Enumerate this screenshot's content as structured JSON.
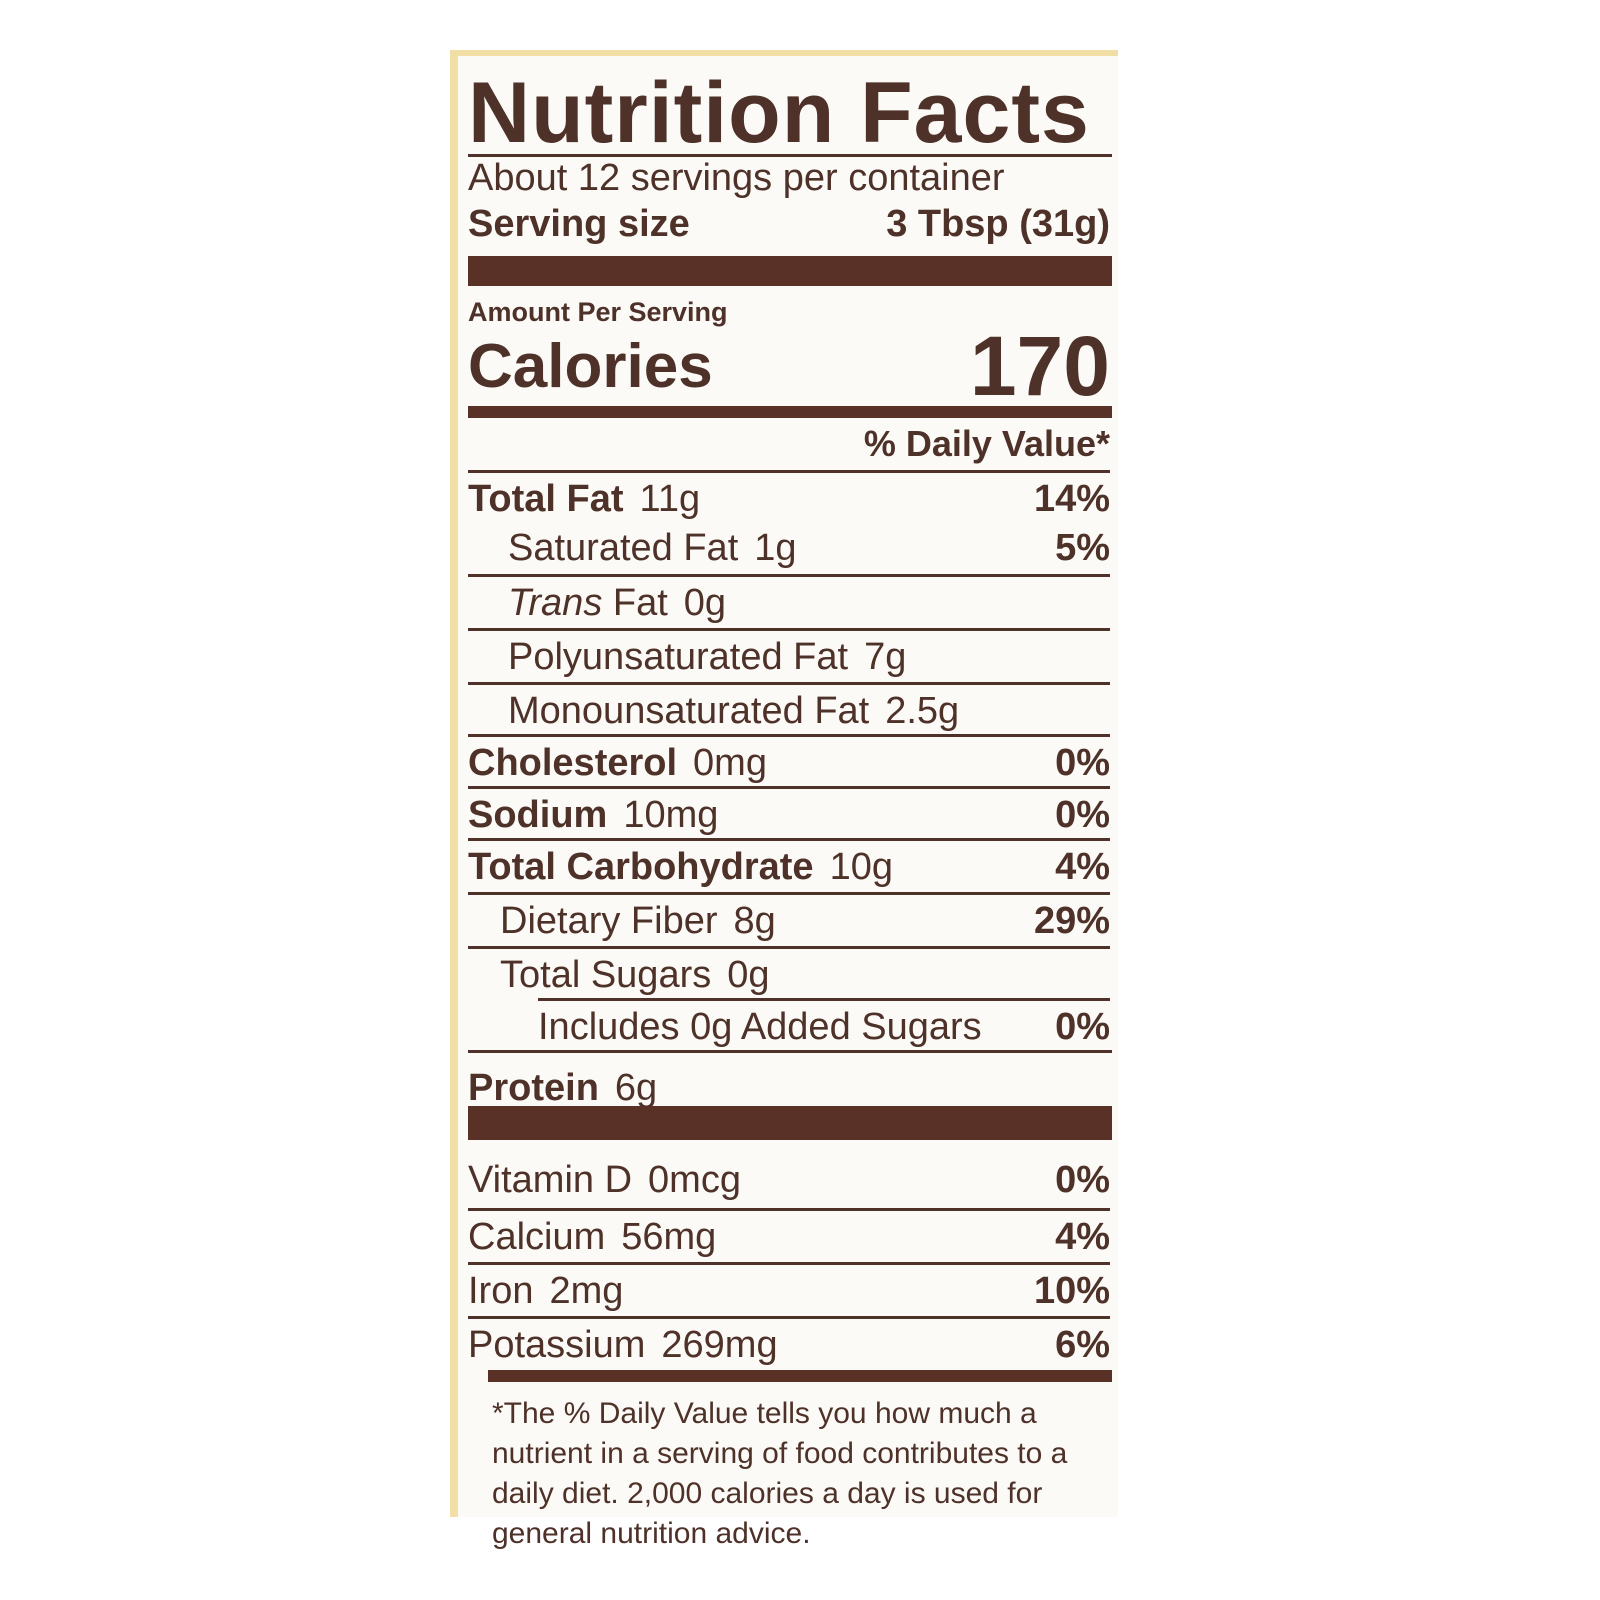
{
  "label": {
    "title": "Nutrition Facts",
    "servings_per_container": "About 12 servings per container",
    "serving_size_label": "Serving size",
    "serving_size_value": "3 Tbsp (31g)",
    "amount_per_serving": "Amount Per Serving",
    "calories_label": "Calories",
    "calories_value": "170",
    "daily_value_header": "% Daily Value*",
    "nutrients": [
      {
        "name": "Total Fat",
        "amount": "11g",
        "dv": "14%"
      },
      {
        "name": "Saturated Fat",
        "amount": "1g",
        "dv": "5%"
      },
      {
        "name": "Trans",
        "name_suffix": "Fat",
        "amount": "0g",
        "dv": ""
      },
      {
        "name": "Polyunsaturated Fat",
        "amount": "7g",
        "dv": ""
      },
      {
        "name": "Monounsaturated Fat",
        "amount": "2.5g",
        "dv": ""
      },
      {
        "name": "Cholesterol",
        "amount": "0mg",
        "dv": "0%"
      },
      {
        "name": "Sodium",
        "amount": "10mg",
        "dv": "0%"
      },
      {
        "name": "Total Carbohydrate",
        "amount": "10g",
        "dv": "4%"
      },
      {
        "name": "Dietary Fiber",
        "amount": "8g",
        "dv": "29%"
      },
      {
        "name": "Total Sugars",
        "amount": "0g",
        "dv": ""
      },
      {
        "name": "Includes 0g Added Sugars",
        "amount": "",
        "dv": "0%"
      },
      {
        "name": "Protein",
        "amount": "6g",
        "dv": ""
      }
    ],
    "vitamins": [
      {
        "name": "Vitamin D",
        "amount": "0mcg",
        "dv": "0%"
      },
      {
        "name": "Calcium",
        "amount": "56mg",
        "dv": "4%"
      },
      {
        "name": "Iron",
        "amount": "2mg",
        "dv": "10%"
      },
      {
        "name": "Potassium",
        "amount": "269mg",
        "dv": "6%"
      }
    ],
    "footnote": "*The % Daily Value tells you how much a nutrient in a serving of food contributes to a daily diet. 2,000 calories a day is used for general nutrition advice."
  }
}
